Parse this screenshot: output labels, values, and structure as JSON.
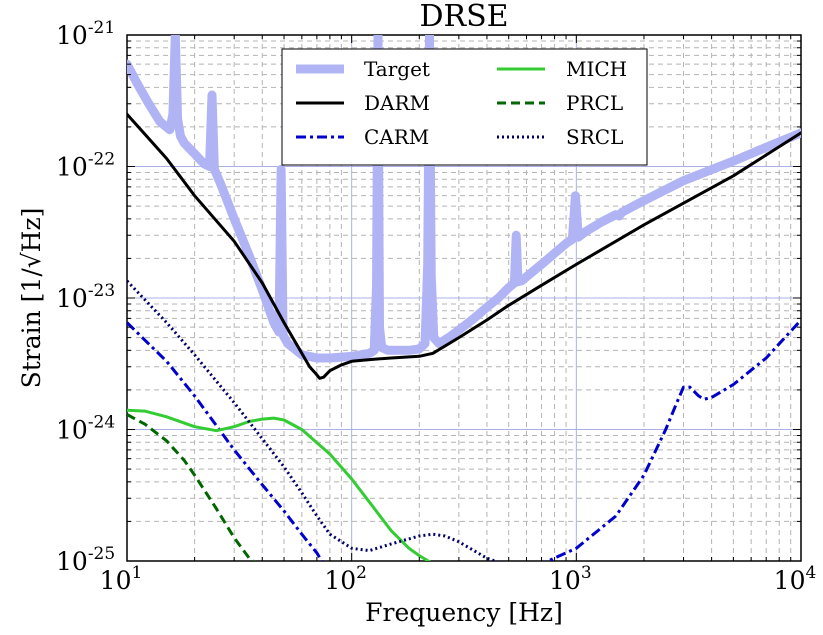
{
  "chart_data": {
    "type": "line",
    "title": "DRSE",
    "xlabel": "Frequency [Hz]",
    "ylabel": "Strain [1/√Hz]",
    "xscale": "log",
    "yscale": "log",
    "xlim": [
      10,
      10000
    ],
    "ylim": [
      1e-25,
      1e-21
    ],
    "grid": true,
    "legend_position": "top-center",
    "x_ticks": [
      {
        "value": 10,
        "base": "10",
        "exp": "1"
      },
      {
        "value": 100,
        "base": "10",
        "exp": "2"
      },
      {
        "value": 1000,
        "base": "10",
        "exp": "3"
      },
      {
        "value": 10000,
        "base": "10",
        "exp": "4"
      }
    ],
    "y_ticks": [
      {
        "value": 1e-25,
        "base": "10",
        "exp": "-25"
      },
      {
        "value": 1e-24,
        "base": "10",
        "exp": "-24"
      },
      {
        "value": 1e-23,
        "base": "10",
        "exp": "-23"
      },
      {
        "value": 1e-22,
        "base": "10",
        "exp": "-22"
      },
      {
        "value": 1e-21,
        "base": "10",
        "exp": "-21"
      }
    ],
    "series": [
      {
        "name": "Target",
        "color": "#b0b4f4",
        "style": "solid",
        "width": 9,
        "x": [
          10,
          11,
          12.5,
          14,
          15.5,
          16,
          16.4,
          16.8,
          17.3,
          18,
          20,
          22,
          23.3,
          23.9,
          24.5,
          26,
          30,
          35,
          40,
          45,
          47.5,
          48.5,
          49.5,
          52,
          60,
          70,
          80,
          90,
          100,
          110,
          120,
          126,
          129,
          131,
          133,
          136,
          145,
          160,
          180,
          200,
          212,
          218,
          222,
          226,
          232,
          245,
          270,
          300,
          350,
          400,
          450,
          500,
          530,
          540,
          550,
          570,
          700,
          900,
          960,
          990,
          1020,
          1100,
          1300,
          1500,
          1550,
          1600,
          2000,
          3000,
          5000,
          7000,
          10000
        ],
        "y": [
          6e-22,
          4.4e-22,
          3e-22,
          2.2e-22,
          1.9e-22,
          2.5e-22,
          1e-21,
          2.3e-22,
          1.7e-22,
          1.5e-22,
          1.25e-22,
          1.05e-22,
          1e-22,
          3.5e-22,
          9.5e-23,
          7.5e-23,
          4e-23,
          2.1e-23,
          1.15e-23,
          6.5e-24,
          5.5e-24,
          9.5e-23,
          5.2e-24,
          4.5e-24,
          3.7e-24,
          3.5e-24,
          3.5e-24,
          3.55e-24,
          3.6e-24,
          3.7e-24,
          3.8e-24,
          4e-24,
          1.2e-23,
          1e-21,
          6e-24,
          4.2e-24,
          4e-24,
          4e-24,
          4e-24,
          4.1e-24,
          4.5e-24,
          1.8e-23,
          1e-21,
          1.5e-23,
          5e-24,
          4.5e-24,
          5e-24,
          5.7e-24,
          7e-24,
          8.5e-24,
          1e-23,
          1.2e-23,
          1.3e-23,
          3e-23,
          1.33e-23,
          1.35e-23,
          1.8e-23,
          2.6e-23,
          2.8e-23,
          6e-23,
          2.9e-23,
          3.2e-23,
          3.8e-23,
          4.3e-23,
          4.2e-23,
          4.5e-23,
          5.5e-23,
          7.8e-23,
          1.1e-22,
          1.4e-22,
          1.8e-22
        ]
      },
      {
        "name": "DARM",
        "color": "#000000",
        "style": "solid",
        "width": 3,
        "x": [
          10,
          15,
          20,
          30,
          40,
          50,
          60,
          65,
          70,
          72,
          75,
          80,
          90,
          100,
          120,
          150,
          200,
          230,
          300,
          400,
          500,
          700,
          1000,
          2000,
          5000,
          10000
        ],
        "y": [
          2.5e-22,
          1.15e-22,
          6e-23,
          2.7e-23,
          1.3e-23,
          6.5e-24,
          3.8e-24,
          3e-24,
          2.6e-24,
          2.45e-24,
          2.5e-24,
          2.8e-24,
          3.1e-24,
          3.3e-24,
          3.4e-24,
          3.5e-24,
          3.6e-24,
          3.8e-24,
          5e-24,
          6.8e-24,
          8.8e-24,
          1.25e-23,
          1.8e-23,
          3.6e-23,
          8.5e-23,
          1.8e-22
        ]
      },
      {
        "name": "CARM",
        "color": "#0000cc",
        "style": "dashdot",
        "width": 3,
        "x": [
          10,
          15,
          20,
          30,
          40,
          50,
          60,
          70,
          75,
          700,
          1000,
          1500,
          2000,
          2500,
          2800,
          3000,
          3200,
          3500,
          3700,
          4000,
          5000,
          7000,
          10000
        ],
        "y": [
          6.5e-24,
          3.3e-24,
          1.8e-24,
          7e-25,
          3.8e-25,
          2.4e-25,
          1.6e-25,
          1.15e-25,
          9.5e-26,
          9.5e-26,
          1.25e-25,
          2.2e-25,
          4.5e-25,
          1e-24,
          1.6e-24,
          2.1e-24,
          2.1e-24,
          1.8e-24,
          1.7e-24,
          1.75e-24,
          2.2e-24,
          3.5e-24,
          6.8e-24
        ]
      },
      {
        "name": "MICH",
        "color": "#33cc33",
        "style": "solid",
        "width": 3,
        "x": [
          10,
          12,
          15,
          20,
          25,
          30,
          35,
          40,
          45,
          50,
          60,
          80,
          100,
          120,
          150,
          180,
          200,
          230
        ],
        "y": [
          1.4e-24,
          1.38e-24,
          1.25e-24,
          1.05e-24,
          9.8e-25,
          1.05e-24,
          1.15e-24,
          1.2e-24,
          1.22e-24,
          1.18e-24,
          1e-24,
          6.5e-25,
          4.2e-25,
          2.8e-25,
          1.7e-25,
          1.25e-25,
          1.1e-25,
          9.5e-26
        ]
      },
      {
        "name": "PRCL",
        "color": "#006600",
        "style": "dashed",
        "width": 3,
        "x": [
          10,
          12,
          15,
          18,
          20,
          25,
          30,
          35,
          38
        ],
        "y": [
          1.3e-24,
          1.1e-24,
          8.2e-25,
          5.8e-25,
          4.5e-25,
          2.5e-25,
          1.5e-25,
          1.05e-25,
          9.5e-26
        ]
      },
      {
        "name": "SRCL",
        "color": "#000066",
        "style": "dotted",
        "width": 3,
        "x": [
          10,
          15,
          20,
          30,
          40,
          50,
          60,
          70,
          80,
          100,
          120,
          150,
          200,
          230,
          260,
          300,
          350,
          400,
          450,
          500
        ],
        "y": [
          1.35e-23,
          6.5e-24,
          3.7e-24,
          1.6e-24,
          8.5e-25,
          5.2e-25,
          3.3e-25,
          2.2e-25,
          1.6e-25,
          1.25e-25,
          1.2e-25,
          1.35e-25,
          1.55e-25,
          1.6e-25,
          1.55e-25,
          1.4e-25,
          1.2e-25,
          1.05e-25,
          9.8e-26,
          9.5e-26
        ]
      }
    ]
  }
}
